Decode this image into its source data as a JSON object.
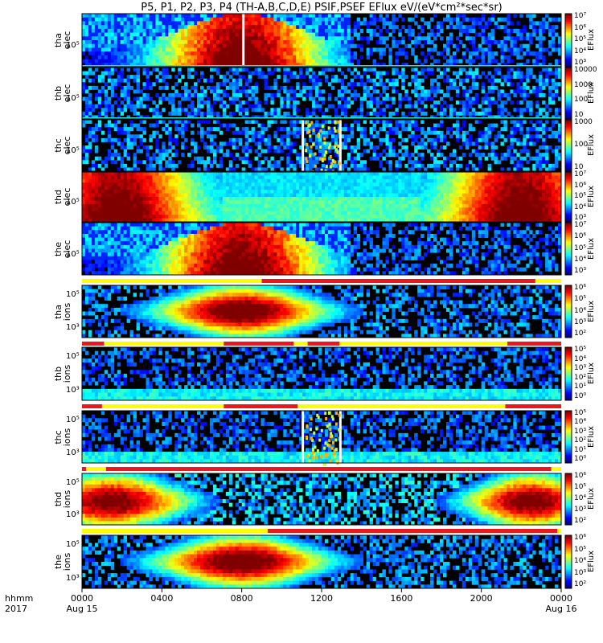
{
  "title": "P5, P1, P2, P3, P4 (TH-A,B,C,D,E) PSIF,PSEF EFlux eV/(eV*cm²*sec*sr)",
  "corner": {
    "line1": "hhmm",
    "line2": "2017"
  },
  "colors": {
    "flag_red": "#e8181e",
    "flag_yellow": "#ffff00",
    "teal_line": "#33ddcc"
  },
  "chart_data": {
    "type": "heatmap",
    "description_series": "spectrogram panels",
    "x_ticks": [
      "0000",
      "0400",
      "0800",
      "1200",
      "1600",
      "2000",
      "0000"
    ],
    "x_dates": [
      "Aug 15",
      "Aug 16"
    ],
    "x_range_hours": [
      0,
      24
    ],
    "panels": [
      {
        "probe": "tha",
        "species": "elec",
        "ytick": "10⁵",
        "cbar_ticks": [
          "10⁷",
          "10⁶",
          "10⁵",
          "10⁴",
          "10³"
        ],
        "unit": "EFlux",
        "profile": "dayside",
        "gaps": [
          7.7,
          8.1
        ]
      },
      {
        "probe": "thb",
        "species": "elec",
        "ytick": "10⁵",
        "cbar_ticks": [
          "10000",
          "1000",
          "100",
          "10"
        ],
        "unit": "EFlux",
        "profile": "noise"
      },
      {
        "probe": "thc",
        "species": "elec",
        "ytick": "10⁵",
        "cbar_ticks": [
          "1000",
          "100",
          "10"
        ],
        "unit": "EFlux",
        "profile": "noise",
        "gaps": [
          11.0,
          13.0
        ]
      },
      {
        "probe": "thd",
        "species": "elec",
        "ytick": "10⁵",
        "cbar_ticks": [
          "10⁷",
          "10⁶",
          "10⁵",
          "10⁴",
          "10³"
        ],
        "unit": "EFlux",
        "profile": "nightside"
      },
      {
        "probe": "the",
        "species": "elec",
        "ytick": "10⁵",
        "cbar_ticks": [
          "10⁷",
          "10⁶",
          "10⁵",
          "10⁴",
          "10³"
        ],
        "unit": "EFlux",
        "profile": "dayside"
      },
      {
        "probe": "tha",
        "species": "ions",
        "ytick_top": "10⁵",
        "ytick_bot": "10³",
        "cbar_ticks": [
          "10⁶",
          "10⁵",
          "10⁴",
          "10³",
          "10²"
        ],
        "unit": "EFlux",
        "profile": "ion_day"
      },
      {
        "probe": "thb",
        "species": "ions",
        "ytick_top": "10⁵",
        "ytick_bot": "10³",
        "cbar_ticks": [
          "10⁵",
          "10⁴",
          "10³",
          "10²",
          "10¹",
          "10⁰"
        ],
        "unit": "EFlux",
        "profile": "noise_ion"
      },
      {
        "probe": "thc",
        "species": "ions",
        "ytick_top": "10⁵",
        "ytick_bot": "10³",
        "cbar_ticks": [
          "10⁵",
          "10⁴",
          "10³",
          "10²",
          "10¹",
          "10⁰"
        ],
        "unit": "EFlux",
        "profile": "noise_ion",
        "gaps": [
          11.0,
          13.0
        ]
      },
      {
        "probe": "thd",
        "species": "ions",
        "ytick_top": "10⁵",
        "ytick_bot": "10³",
        "cbar_ticks": [
          "10⁶",
          "10⁵",
          "10⁴",
          "10³",
          "10²"
        ],
        "unit": "EFlux",
        "profile": "ion_night"
      },
      {
        "probe": "the",
        "species": "ions",
        "ytick_top": "10⁵",
        "ytick_bot": "10³",
        "cbar_ticks": [
          "10⁶",
          "10⁵",
          "10⁴",
          "10³",
          "10²"
        ],
        "unit": "EFlux",
        "profile": "ion_day"
      }
    ],
    "flag_bars": [
      {
        "red_ranges_hours": [
          [
            9.0,
            22.7
          ]
        ]
      },
      {
        "red_ranges_hours": [
          [
            0,
            1.1
          ],
          [
            7.1,
            10.6
          ],
          [
            11.3,
            12.9
          ],
          [
            21.3,
            24
          ]
        ]
      },
      {
        "red_ranges_hours": [
          [
            0,
            1.0
          ],
          [
            7.1,
            10.8
          ],
          [
            21.2,
            24
          ]
        ]
      },
      {
        "red_ranges_hours": [
          [
            0,
            0.2
          ],
          [
            1.2,
            23.5
          ]
        ]
      },
      {
        "red_ranges_hours": [
          [
            9.3,
            23.8
          ]
        ]
      }
    ]
  }
}
